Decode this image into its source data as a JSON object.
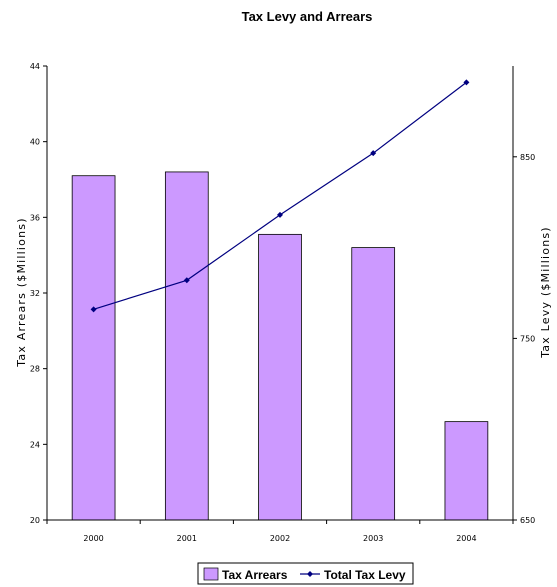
{
  "chart_data": {
    "type": "bar",
    "title": "Tax Levy and Arrears",
    "categories": [
      "2000",
      "2001",
      "2002",
      "2003",
      "2004"
    ],
    "series": [
      {
        "name": "Tax Arrears",
        "type": "bar",
        "axis": "left",
        "color": "#cc99ff",
        "values": [
          38.2,
          38.4,
          35.1,
          34.4,
          25.2
        ]
      },
      {
        "name": "Total Tax Levy",
        "type": "line",
        "axis": "right",
        "color": "#000080",
        "values": [
          766,
          782,
          818,
          852,
          891
        ]
      }
    ],
    "ylabel": "Tax Arrears ($Millions)",
    "ylabel_right": "Tax Levy ($Millions)",
    "ylim": [
      20,
      44
    ],
    "yticks": [
      "20",
      "24",
      "28",
      "32",
      "36",
      "40",
      "44"
    ],
    "ylim_right": [
      650,
      900
    ],
    "yticks_right": [
      "650",
      "750",
      "850"
    ],
    "grid": false,
    "legend_position": "bottom"
  }
}
